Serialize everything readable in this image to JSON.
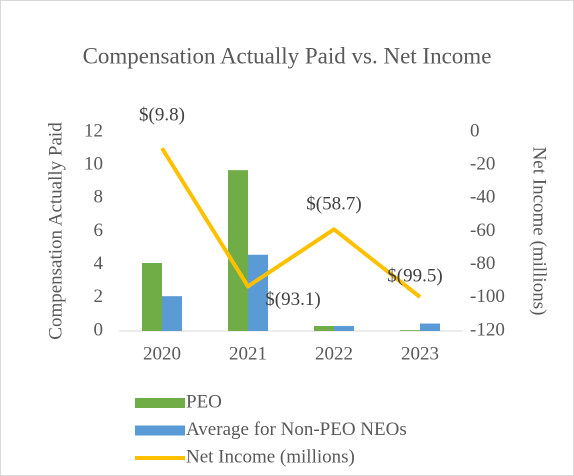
{
  "chart_data": {
    "type": "bar_line",
    "title": "Compensation Actually Paid vs. Net Income",
    "ylabel": "Compensation Actually Paid",
    "y2label": "Net Income (millions)",
    "categories": [
      "2020",
      "2021",
      "2022",
      "2023"
    ],
    "series": [
      {
        "name": "PEO",
        "type": "bar",
        "color": "#70ad47",
        "values": [
          4.1,
          9.7,
          0.3,
          0.05
        ]
      },
      {
        "name": "Average for Non-PEO NEOs",
        "type": "bar",
        "color": "#5b9bd5",
        "values": [
          2.1,
          4.6,
          0.3,
          0.45
        ]
      },
      {
        "name": "Net Income (millions)",
        "type": "line",
        "axis": "y2",
        "color": "#ffc000",
        "values": [
          -9.8,
          -93.1,
          -58.7,
          -99.5
        ],
        "value_labels": [
          "$(9.8)",
          "$(93.1)",
          "$(58.7)",
          "$(99.5)"
        ]
      }
    ],
    "ylim": [
      0,
      12
    ],
    "yticks": [
      0,
      2,
      4,
      6,
      8,
      10,
      12
    ],
    "y2lim": [
      -120,
      0
    ],
    "y2ticks": [
      -120,
      -100,
      -80,
      -60,
      -40,
      -20,
      0
    ],
    "legend": "bottom",
    "grid": false
  }
}
